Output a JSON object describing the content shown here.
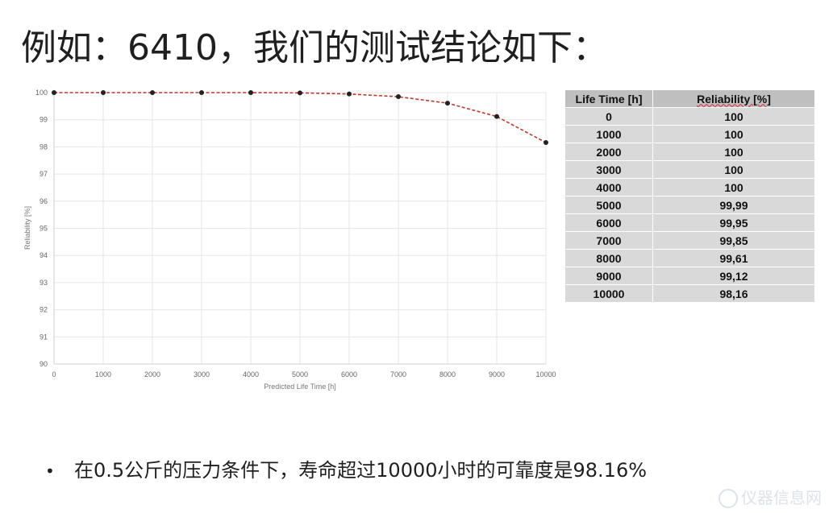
{
  "slide": {
    "title": "例如：6410，我们的测试结论如下：",
    "bullet": "在0.5公斤的压力条件下，寿命超过10000小时的可靠度是98.16%",
    "watermark": "仪器信息网"
  },
  "table": {
    "headers": [
      "Life Time [h]",
      "Reliability [%]"
    ],
    "rows": [
      [
        "0",
        "100"
      ],
      [
        "1000",
        "100"
      ],
      [
        "2000",
        "100"
      ],
      [
        "3000",
        "100"
      ],
      [
        "4000",
        "100"
      ],
      [
        "5000",
        "99,99"
      ],
      [
        "6000",
        "99,95"
      ],
      [
        "7000",
        "99,85"
      ],
      [
        "8000",
        "99,61"
      ],
      [
        "9000",
        "99,12"
      ],
      [
        "10000",
        "98,16"
      ]
    ]
  },
  "chart_data": {
    "type": "line",
    "x": [
      0,
      1000,
      2000,
      3000,
      4000,
      5000,
      6000,
      7000,
      8000,
      9000,
      10000
    ],
    "series": [
      {
        "values": [
          100,
          100,
          100,
          100,
          100,
          99.99,
          99.95,
          99.85,
          99.61,
          99.12,
          98.16
        ],
        "color": "#c0392b"
      }
    ],
    "xlabel": "Predicted Life Time [h]",
    "ylabel": "Reliability [%]",
    "xlim": [
      0,
      10000
    ],
    "ylim": [
      90,
      100
    ],
    "xticks": [
      0,
      1000,
      2000,
      3000,
      4000,
      5000,
      6000,
      7000,
      8000,
      9000,
      10000
    ],
    "yticks": [
      90,
      91,
      92,
      93,
      94,
      95,
      96,
      97,
      98,
      99,
      100
    ],
    "grid": true,
    "legend": "none",
    "line_style": "dashed",
    "marker_color": "#222222"
  }
}
